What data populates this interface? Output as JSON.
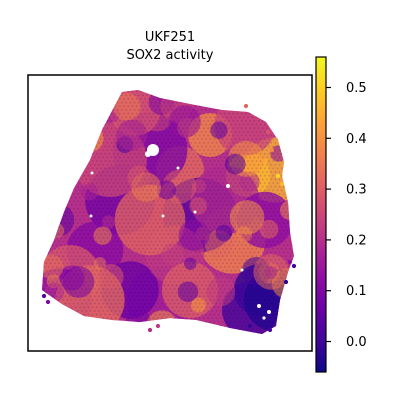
{
  "title": {
    "line1": "UKF251",
    "line2": "SOX2 activity"
  },
  "chart_data": {
    "type": "heatmap",
    "subtype": "spatial-spot-map",
    "title": "UKF251\nSOX2 activity",
    "xlabel": "",
    "ylabel": "",
    "axis_ticks": "none",
    "grid": false,
    "colormap": "plasma",
    "colorbar": {
      "placement": "right",
      "vmin": -0.06,
      "vmax": 0.56,
      "ticks": [
        0.0,
        0.1,
        0.2,
        0.3,
        0.4,
        0.5
      ],
      "tick_labels": [
        "0.0",
        "0.1",
        "0.2",
        "0.3",
        "0.4",
        "0.5"
      ]
    },
    "value_range_observed": [
      -0.05,
      0.55
    ],
    "regions": [
      {
        "location": "bottom-right",
        "activity": "low",
        "approx_value": -0.03
      },
      {
        "location": "top-right edge",
        "activity": "high",
        "approx_value": 0.5
      },
      {
        "location": "center",
        "activity": "mixed",
        "approx_value": 0.2
      }
    ]
  },
  "colors": {
    "plasma_stops": [
      "#0d0887",
      "#41049d",
      "#6a00a8",
      "#8f0da4",
      "#b12a90",
      "#cc4778",
      "#e16462",
      "#f2844b",
      "#fca636",
      "#fcce25",
      "#f0f921"
    ],
    "frame": "#000000",
    "background": "#ffffff"
  }
}
